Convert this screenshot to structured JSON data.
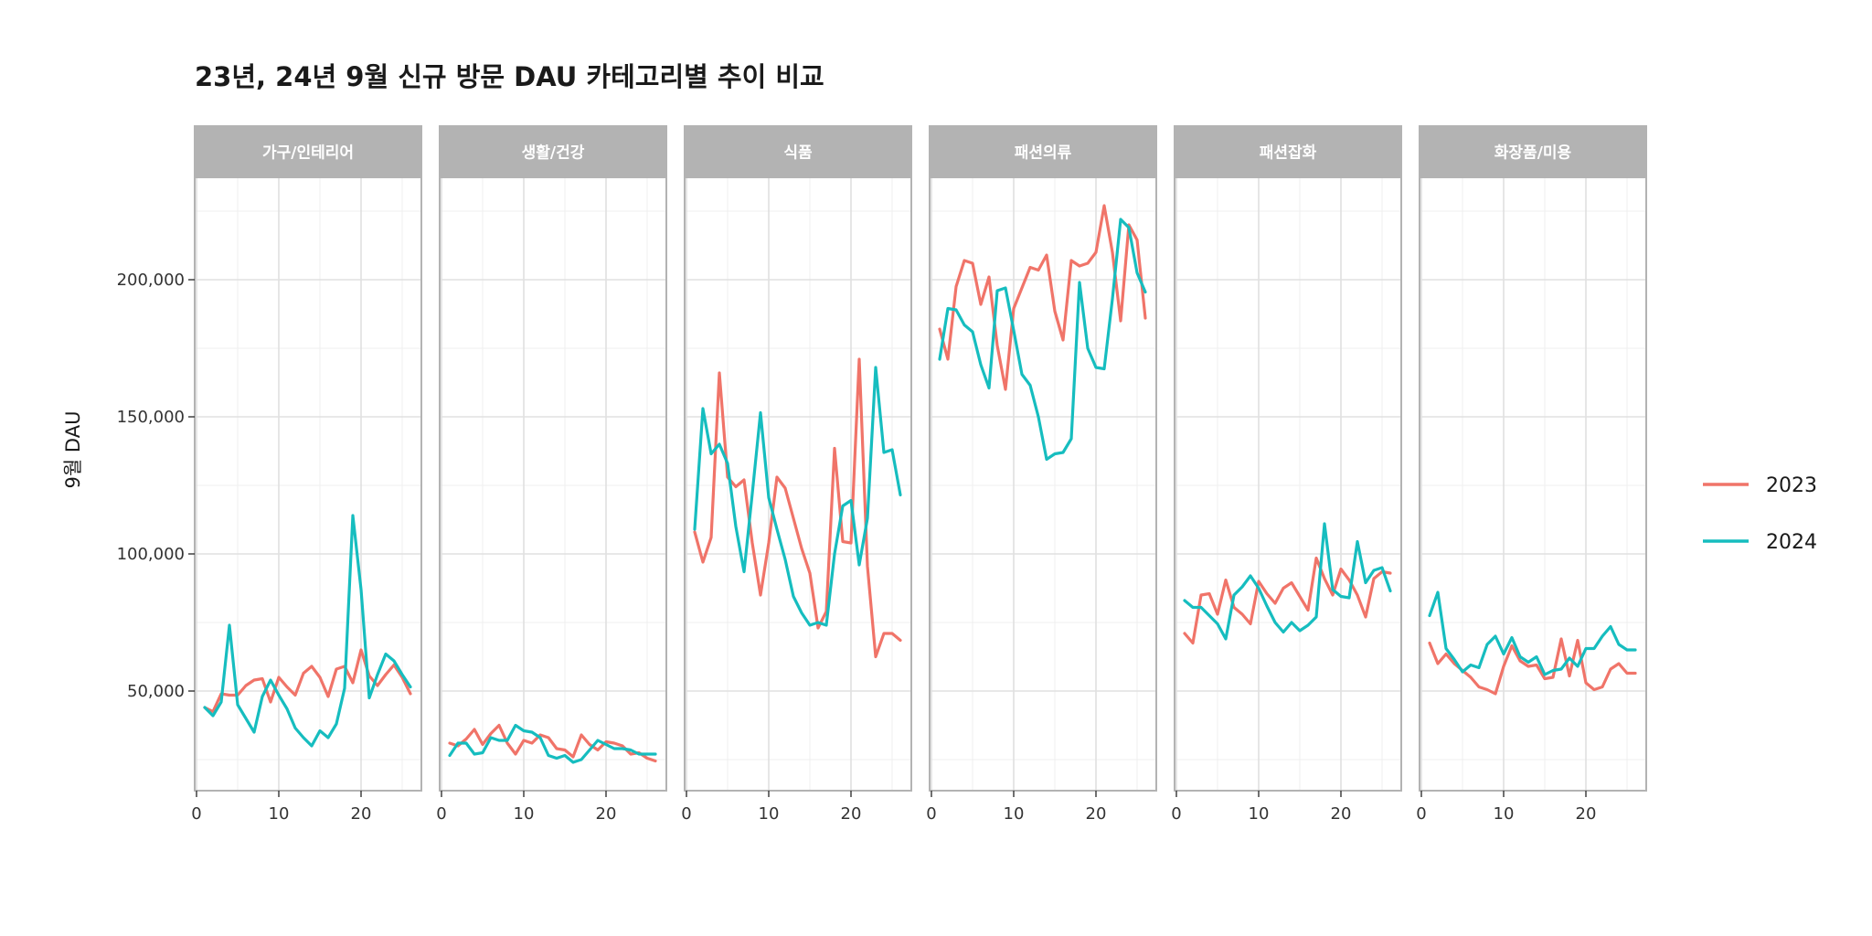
{
  "chart_data": {
    "type": "line",
    "title": "23년, 24년 9월 신규 방문 DAU 카테고리별 추이 비교",
    "xlabel": "",
    "ylabel": "9월 DAU",
    "xlim": [
      0,
      27
    ],
    "ylim": [
      15000,
      237000
    ],
    "x_ticks": [
      0,
      10,
      20
    ],
    "y_ticks": [
      50000,
      100000,
      150000,
      200000
    ],
    "y_tick_labels": [
      "50,000",
      "100,000",
      "150,000",
      "200,000"
    ],
    "grid": true,
    "legend_position": "right",
    "colors": {
      "2023": "#F07469",
      "2024": "#16BDBF",
      "strip": "#B3B3B3",
      "panel_border": "#B3B3B3",
      "grid": "#E0E0E0"
    },
    "series_names": [
      "2023",
      "2024"
    ],
    "panels": [
      {
        "label": "가구/인테리어",
        "series": [
          {
            "name": "2023",
            "x": [
              1,
              2,
              3,
              4,
              5,
              6,
              7,
              8,
              9,
              10,
              11,
              12,
              13,
              14,
              15,
              16,
              17,
              18,
              19,
              20,
              21,
              22,
              23,
              24,
              25,
              26
            ],
            "values": [
              44000,
              42500,
              49000,
              48500,
              48500,
              52000,
              54000,
              54500,
              46000,
              55000,
              51500,
              48500,
              56500,
              59000,
              55000,
              48000,
              58000,
              59000,
              53000,
              65000,
              55500,
              52000,
              56000,
              59500,
              55000,
              49000
            ]
          },
          {
            "name": "2024",
            "x": [
              1,
              2,
              3,
              4,
              5,
              6,
              7,
              8,
              9,
              10,
              11,
              12,
              13,
              14,
              15,
              16,
              17,
              18,
              19,
              20,
              21,
              22,
              23,
              24,
              25,
              26
            ],
            "values": [
              44000,
              41000,
              46000,
              74000,
              45000,
              40000,
              35000,
              48000,
              54000,
              48500,
              43500,
              36500,
              33000,
              30000,
              35500,
              33000,
              38000,
              51000,
              114000,
              87000,
              47500,
              56000,
              63500,
              61000,
              56000,
              51500
            ]
          }
        ]
      },
      {
        "label": "생활/건강",
        "series": [
          {
            "name": "2023",
            "x": [
              1,
              2,
              3,
              4,
              5,
              6,
              7,
              8,
              9,
              10,
              11,
              12,
              13,
              14,
              15,
              16,
              17,
              18,
              19,
              20,
              21,
              22,
              23,
              24,
              25,
              26
            ],
            "values": [
              31000,
              30000,
              32500,
              36000,
              30500,
              34500,
              37500,
              31000,
              27000,
              32000,
              31000,
              34000,
              33000,
              29000,
              28500,
              26000,
              34000,
              30500,
              28500,
              31500,
              31000,
              30000,
              27000,
              27500,
              25500,
              24500
            ]
          },
          {
            "name": "2024",
            "x": [
              1,
              2,
              3,
              4,
              5,
              6,
              7,
              8,
              9,
              10,
              11,
              12,
              13,
              14,
              15,
              16,
              17,
              18,
              19,
              20,
              21,
              22,
              23,
              24,
              25,
              26
            ],
            "values": [
              26500,
              31000,
              31000,
              27000,
              27500,
              33000,
              32000,
              32000,
              37500,
              35500,
              35000,
              33000,
              26500,
              25500,
              26500,
              24000,
              25000,
              28500,
              32000,
              30500,
              29000,
              29000,
              28500,
              27000,
              27000,
              27000
            ]
          }
        ]
      },
      {
        "label": "식품",
        "series": [
          {
            "name": "2023",
            "x": [
              1,
              2,
              3,
              4,
              5,
              6,
              7,
              8,
              9,
              10,
              11,
              12,
              13,
              14,
              15,
              16,
              17,
              18,
              19,
              20,
              21,
              22,
              23,
              24,
              25,
              26
            ],
            "values": [
              108000,
              97000,
              106000,
              166000,
              128000,
              124500,
              127000,
              104000,
              85000,
              104000,
              128000,
              124000,
              113000,
              102000,
              93000,
              73000,
              79000,
              138500,
              104500,
              104000,
              171000,
              95500,
              62500,
              71000,
              71000,
              68500
            ]
          },
          {
            "name": "2024",
            "x": [
              1,
              2,
              3,
              4,
              5,
              6,
              7,
              8,
              9,
              10,
              11,
              12,
              13,
              14,
              15,
              16,
              17,
              18,
              19,
              20,
              21,
              22,
              23,
              24,
              25,
              26
            ],
            "values": [
              109000,
              153000,
              136500,
              140000,
              133000,
              110000,
              93500,
              122000,
              151500,
              120500,
              109000,
              98000,
              84500,
              78500,
              74000,
              75000,
              74000,
              100000,
              117500,
              119500,
              96000,
              113000,
              168000,
              137000,
              138000,
              121500
            ]
          }
        ]
      },
      {
        "label": "패션의류",
        "series": [
          {
            "name": "2023",
            "x": [
              1,
              2,
              3,
              4,
              5,
              6,
              7,
              8,
              9,
              10,
              11,
              12,
              13,
              14,
              15,
              16,
              17,
              18,
              19,
              20,
              21,
              22,
              23,
              24,
              25,
              26
            ],
            "values": [
              182000,
              171000,
              197500,
              207000,
              206000,
              191000,
              201000,
              176000,
              160000,
              189500,
              197000,
              204500,
              203500,
              209000,
              188500,
              178000,
              207000,
              205000,
              206000,
              210000,
              227000,
              210000,
              185000,
              220000,
              214500,
              186000
            ]
          },
          {
            "name": "2024",
            "x": [
              1,
              2,
              3,
              4,
              5,
              6,
              7,
              8,
              9,
              10,
              11,
              12,
              13,
              14,
              15,
              16,
              17,
              18,
              19,
              20,
              21,
              22,
              23,
              24,
              25,
              26
            ],
            "values": [
              171000,
              189500,
              189000,
              183500,
              181000,
              169000,
              160500,
              196000,
              197000,
              181500,
              165500,
              161500,
              150000,
              134500,
              136500,
              137000,
              142000,
              199000,
              175000,
              168000,
              167500,
              193000,
              222000,
              219000,
              202500,
              195500
            ]
          }
        ]
      },
      {
        "label": "패션잡화",
        "series": [
          {
            "name": "2023",
            "x": [
              1,
              2,
              3,
              4,
              5,
              6,
              7,
              8,
              9,
              10,
              11,
              12,
              13,
              14,
              15,
              16,
              17,
              18,
              19,
              20,
              21,
              22,
              23,
              24,
              25,
              26
            ],
            "values": [
              71000,
              67500,
              85000,
              85500,
              78000,
              90500,
              80500,
              78000,
              74500,
              90000,
              85500,
              82000,
              87500,
              89500,
              84500,
              79500,
              98500,
              91000,
              85000,
              94500,
              90500,
              85000,
              77000,
              91000,
              93500,
              93000
            ]
          },
          {
            "name": "2024",
            "x": [
              1,
              2,
              3,
              4,
              5,
              6,
              7,
              8,
              9,
              10,
              11,
              12,
              13,
              14,
              15,
              16,
              17,
              18,
              19,
              20,
              21,
              22,
              23,
              24,
              25,
              26
            ],
            "values": [
              83000,
              80500,
              80500,
              77500,
              74500,
              69000,
              85000,
              88000,
              92000,
              87500,
              81000,
              75000,
              71500,
              75000,
              72000,
              74000,
              77000,
              111000,
              87000,
              84500,
              84000,
              104500,
              89500,
              94000,
              95000,
              86500
            ]
          }
        ]
      },
      {
        "label": "화장품/미용",
        "series": [
          {
            "name": "2023",
            "x": [
              1,
              2,
              3,
              4,
              5,
              6,
              7,
              8,
              9,
              10,
              11,
              12,
              13,
              14,
              15,
              16,
              17,
              18,
              19,
              20,
              21,
              22,
              23,
              24,
              25,
              26
            ],
            "values": [
              67500,
              60000,
              63500,
              60000,
              57500,
              55000,
              51500,
              50500,
              49000,
              59000,
              66500,
              61000,
              59000,
              59500,
              54500,
              55000,
              69000,
              55500,
              68500,
              53000,
              50500,
              51500,
              58000,
              60000,
              56500,
              56500
            ]
          },
          {
            "name": "2024",
            "x": [
              1,
              2,
              3,
              4,
              5,
              6,
              7,
              8,
              9,
              10,
              11,
              12,
              13,
              14,
              15,
              16,
              17,
              18,
              19,
              20,
              21,
              22,
              23,
              24,
              25,
              26
            ],
            "values": [
              77500,
              86000,
              65500,
              61500,
              57000,
              59500,
              58500,
              67000,
              70000,
              63500,
              69500,
              62500,
              60500,
              62500,
              56000,
              57500,
              58000,
              62000,
              59000,
              65500,
              65500,
              70000,
              73500,
              67000,
              65000,
              65000
            ]
          }
        ]
      }
    ]
  }
}
